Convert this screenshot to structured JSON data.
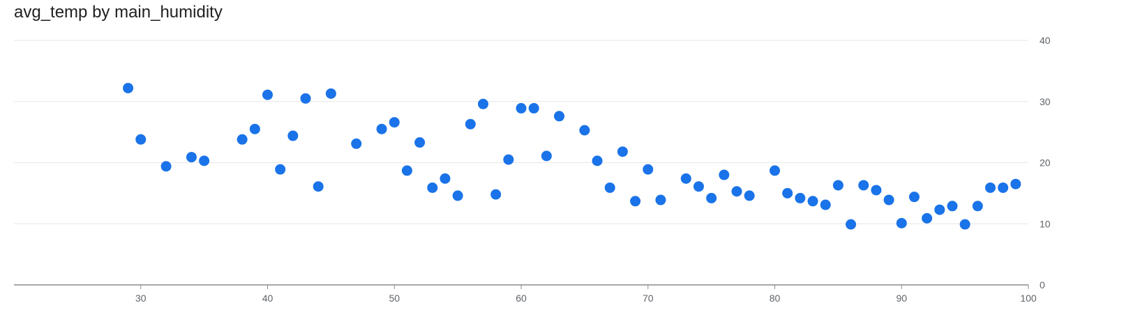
{
  "chart_data": {
    "type": "scatter",
    "title": "avg_temp by main_humidity",
    "xlabel": "",
    "ylabel": "",
    "xlim": [
      20,
      100
    ],
    "ylim": [
      0,
      40
    ],
    "x_ticks": [
      30,
      40,
      50,
      60,
      70,
      80,
      90,
      100
    ],
    "y_ticks": [
      0,
      10,
      20,
      30,
      40
    ],
    "y_axis_position": "right",
    "grid": true,
    "marker_color": "#1a73e8",
    "points": [
      [
        29,
        32.2
      ],
      [
        30,
        23.8
      ],
      [
        32,
        19.4
      ],
      [
        34,
        20.9
      ],
      [
        35,
        20.3
      ],
      [
        38,
        23.8
      ],
      [
        39,
        25.5
      ],
      [
        40,
        31.1
      ],
      [
        41,
        18.9
      ],
      [
        42,
        24.4
      ],
      [
        43,
        30.5
      ],
      [
        44,
        16.1
      ],
      [
        45,
        31.3
      ],
      [
        47,
        23.1
      ],
      [
        49,
        25.5
      ],
      [
        50,
        26.6
      ],
      [
        51,
        18.7
      ],
      [
        52,
        23.3
      ],
      [
        53,
        15.9
      ],
      [
        54,
        17.4
      ],
      [
        55,
        14.6
      ],
      [
        56,
        26.3
      ],
      [
        57,
        29.6
      ],
      [
        58,
        14.8
      ],
      [
        59,
        20.5
      ],
      [
        60,
        28.9
      ],
      [
        61,
        28.9
      ],
      [
        62,
        21.1
      ],
      [
        63,
        27.6
      ],
      [
        65,
        25.3
      ],
      [
        66,
        20.3
      ],
      [
        67,
        15.9
      ],
      [
        68,
        21.8
      ],
      [
        69,
        13.7
      ],
      [
        70,
        18.9
      ],
      [
        71,
        13.9
      ],
      [
        73,
        17.4
      ],
      [
        74,
        16.1
      ],
      [
        75,
        14.2
      ],
      [
        76,
        18.0
      ],
      [
        77,
        15.3
      ],
      [
        78,
        14.6
      ],
      [
        80,
        18.7
      ],
      [
        81,
        15.0
      ],
      [
        82,
        14.2
      ],
      [
        83,
        13.7
      ],
      [
        84,
        13.1
      ],
      [
        85,
        16.3
      ],
      [
        86,
        9.9
      ],
      [
        87,
        16.3
      ],
      [
        88,
        15.5
      ],
      [
        89,
        13.9
      ],
      [
        90,
        10.1
      ],
      [
        91,
        14.4
      ],
      [
        92,
        10.9
      ],
      [
        93,
        12.3
      ],
      [
        94,
        12.9
      ],
      [
        95,
        9.9
      ],
      [
        96,
        12.9
      ],
      [
        97,
        15.9
      ],
      [
        98,
        15.9
      ],
      [
        99,
        16.5
      ]
    ]
  }
}
